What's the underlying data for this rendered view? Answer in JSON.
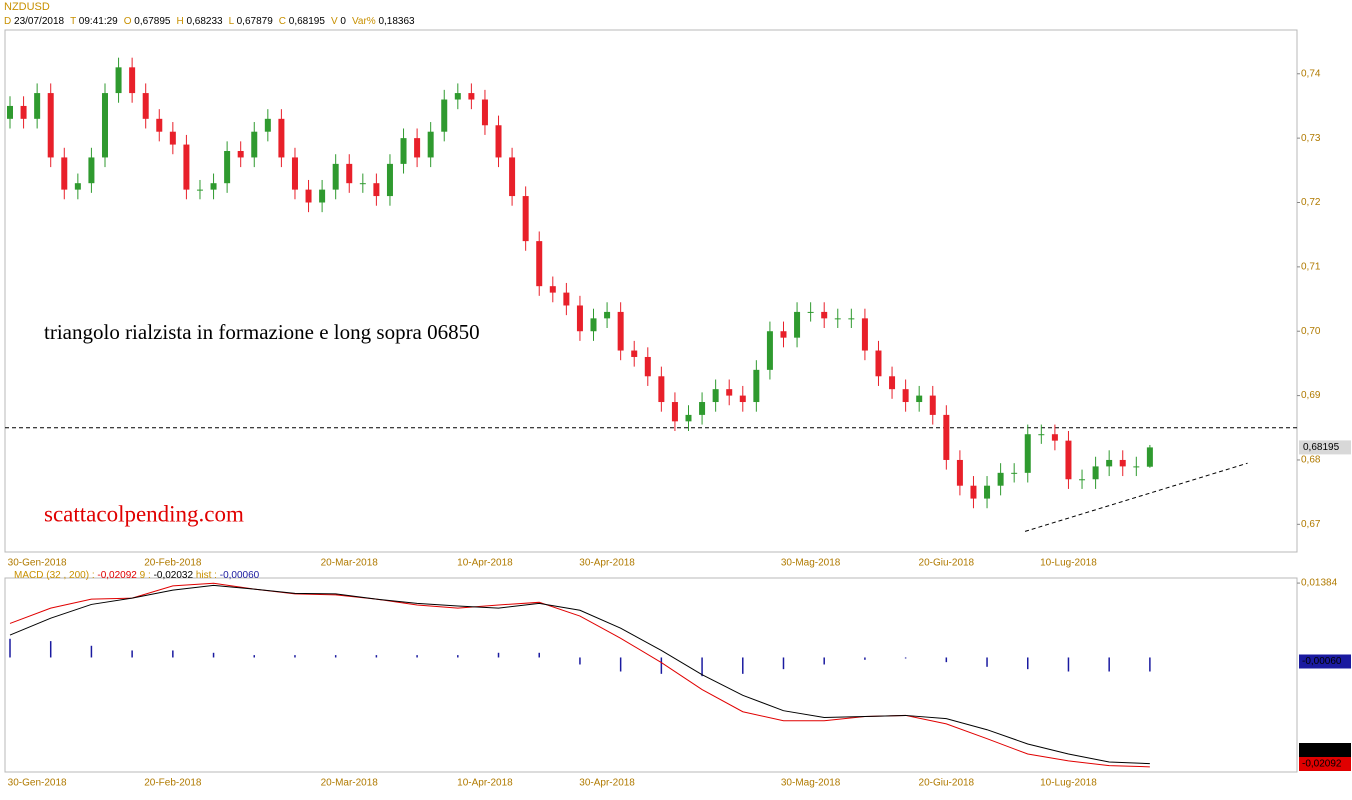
{
  "chart_data": [
    {
      "type": "candlestick",
      "title": "NZDUSD",
      "info": [
        {
          "key": "D",
          "value": "23/07/2018"
        },
        {
          "key": "T",
          "value": "09:41:29"
        },
        {
          "key": "O",
          "value": "0,67895"
        },
        {
          "key": "H",
          "value": "0,68233"
        },
        {
          "key": "L",
          "value": "0,67879"
        },
        {
          "key": "C",
          "value": "0,68195"
        },
        {
          "key": "V",
          "value": "0"
        },
        {
          "key": "Var%",
          "value": "0,18363"
        }
      ],
      "categories": [
        null,
        null,
        "30-Gen-2018",
        null,
        null,
        null,
        null,
        null,
        null,
        null,
        null,
        null,
        "20-Feb-2018",
        null,
        null,
        null,
        null,
        null,
        null,
        null,
        null,
        null,
        null,
        null,
        null,
        "20-Mar-2018",
        null,
        null,
        null,
        null,
        null,
        null,
        null,
        null,
        null,
        "10-Apr-2018",
        null,
        null,
        null,
        null,
        null,
        null,
        null,
        null,
        "30-Apr-2018",
        null,
        null,
        null,
        null,
        null,
        null,
        null,
        null,
        null,
        null,
        null,
        null,
        null,
        null,
        "30-Mag-2018",
        null,
        null,
        null,
        null,
        null,
        null,
        null,
        null,
        null,
        "20-Giu-2018",
        null,
        null,
        null,
        null,
        null,
        null,
        null,
        null,
        "10-Lug-2018",
        null,
        null,
        null,
        null,
        null,
        null
      ],
      "open": [
        0.733,
        0.735,
        0.733,
        0.737,
        0.727,
        0.722,
        0.723,
        0.727,
        0.737,
        0.741,
        0.737,
        0.733,
        0.731,
        0.729,
        0.722,
        0.722,
        0.723,
        0.728,
        0.727,
        0.731,
        0.733,
        0.727,
        0.722,
        0.72,
        0.722,
        0.726,
        0.723,
        0.723,
        0.721,
        0.726,
        0.73,
        0.727,
        0.731,
        0.736,
        0.737,
        0.736,
        0.732,
        0.727,
        0.721,
        0.714,
        0.707,
        0.706,
        0.704,
        0.7,
        0.702,
        0.703,
        0.697,
        0.696,
        0.693,
        0.689,
        0.686,
        0.687,
        0.689,
        0.691,
        0.69,
        0.689,
        0.694,
        0.7,
        0.699,
        0.703,
        0.703,
        0.702,
        0.702,
        0.702,
        0.697,
        0.693,
        0.691,
        0.689,
        0.69,
        0.687,
        0.68,
        0.676,
        0.674,
        0.676,
        0.678,
        0.678,
        0.684,
        0.684,
        0.683,
        0.677,
        0.677,
        0.679,
        0.68,
        0.679,
        0.67895
      ],
      "high": [
        0.7365,
        0.7365,
        0.7385,
        0.7385,
        0.7285,
        0.7245,
        0.7285,
        0.7385,
        0.7425,
        0.7425,
        0.7385,
        0.7345,
        0.7325,
        0.7305,
        0.7235,
        0.7245,
        0.7295,
        0.7295,
        0.7325,
        0.7345,
        0.7345,
        0.7285,
        0.7235,
        0.7235,
        0.7275,
        0.7275,
        0.7245,
        0.7245,
        0.7275,
        0.7315,
        0.7315,
        0.7325,
        0.7375,
        0.7385,
        0.7385,
        0.7375,
        0.7335,
        0.7285,
        0.7225,
        0.7155,
        0.7085,
        0.7075,
        0.7055,
        0.7035,
        0.7045,
        0.7045,
        0.6985,
        0.6975,
        0.6945,
        0.6905,
        0.6885,
        0.6905,
        0.6925,
        0.6925,
        0.6915,
        0.6955,
        0.7015,
        0.7015,
        0.7045,
        0.7045,
        0.7045,
        0.7035,
        0.7035,
        0.7035,
        0.6985,
        0.6945,
        0.6925,
        0.6915,
        0.6915,
        0.6885,
        0.6815,
        0.6775,
        0.6775,
        0.6795,
        0.6795,
        0.6855,
        0.6855,
        0.6855,
        0.6845,
        0.6785,
        0.6805,
        0.6815,
        0.6815,
        0.6805,
        0.68233
      ],
      "low": [
        0.7315,
        0.7315,
        0.7315,
        0.7255,
        0.7205,
        0.7205,
        0.7215,
        0.7255,
        0.7355,
        0.7355,
        0.7315,
        0.7295,
        0.7275,
        0.7205,
        0.7205,
        0.7205,
        0.7215,
        0.7255,
        0.7255,
        0.7295,
        0.7255,
        0.7205,
        0.7185,
        0.7185,
        0.7205,
        0.7215,
        0.7215,
        0.7195,
        0.7195,
        0.7245,
        0.7255,
        0.7255,
        0.7295,
        0.7345,
        0.7345,
        0.7305,
        0.7255,
        0.7195,
        0.7125,
        0.7055,
        0.7045,
        0.7025,
        0.6985,
        0.6985,
        0.7005,
        0.6955,
        0.6945,
        0.6915,
        0.6875,
        0.6845,
        0.6845,
        0.6855,
        0.6875,
        0.6885,
        0.6875,
        0.6875,
        0.6925,
        0.6975,
        0.6975,
        0.7015,
        0.7005,
        0.7005,
        0.7005,
        0.6955,
        0.6915,
        0.6895,
        0.6875,
        0.6875,
        0.6855,
        0.6785,
        0.6745,
        0.6725,
        0.6725,
        0.6745,
        0.6765,
        0.6765,
        0.6825,
        0.6815,
        0.6755,
        0.6755,
        0.6755,
        0.6775,
        0.6775,
        0.6775,
        0.67879
      ],
      "close": [
        0.735,
        0.733,
        0.737,
        0.727,
        0.722,
        0.723,
        0.727,
        0.737,
        0.741,
        0.737,
        0.733,
        0.731,
        0.729,
        0.722,
        0.722,
        0.723,
        0.728,
        0.727,
        0.731,
        0.733,
        0.727,
        0.722,
        0.72,
        0.722,
        0.726,
        0.723,
        0.723,
        0.721,
        0.726,
        0.73,
        0.727,
        0.731,
        0.736,
        0.737,
        0.736,
        0.732,
        0.727,
        0.721,
        0.714,
        0.707,
        0.706,
        0.704,
        0.7,
        0.702,
        0.703,
        0.697,
        0.696,
        0.693,
        0.689,
        0.686,
        0.687,
        0.689,
        0.691,
        0.69,
        0.689,
        0.694,
        0.7,
        0.699,
        0.703,
        0.703,
        0.702,
        0.702,
        0.702,
        0.697,
        0.693,
        0.691,
        0.689,
        0.69,
        0.687,
        0.68,
        0.676,
        0.674,
        0.676,
        0.678,
        0.678,
        0.684,
        0.684,
        0.683,
        0.677,
        0.677,
        0.679,
        0.68,
        0.679,
        0.679,
        0.68195
      ],
      "up_color": "#2f9a2f",
      "down_color": "#e8202a",
      "ylim": [
        0.6657,
        0.7468
      ],
      "yticks": [
        {
          "value": 0.67,
          "label": "0,67"
        },
        {
          "value": 0.68,
          "label": "0,68"
        },
        {
          "value": 0.69,
          "label": "0,69"
        },
        {
          "value": 0.7,
          "label": "0,70"
        },
        {
          "value": 0.71,
          "label": "0,71"
        },
        {
          "value": 0.72,
          "label": "0,72"
        },
        {
          "value": 0.73,
          "label": "0,73"
        },
        {
          "value": 0.74,
          "label": "0,74"
        }
      ],
      "last_label": "0,68195",
      "annotations": [
        "triangolo rialzista in formazione e long sopra 06850",
        "scattacolpending.com"
      ],
      "hline": 0.685,
      "trendline": {
        "x": [
          74.8,
          91.2
        ],
        "y": [
          0.6689,
          0.6795
        ]
      }
    },
    {
      "type": "macd",
      "params": "(32 , 200)",
      "separator": ":",
      "x": [
        0,
        3,
        6,
        9,
        12,
        15,
        18,
        21,
        24,
        27,
        30,
        33,
        36,
        39,
        42,
        45,
        48,
        51,
        54,
        57,
        60,
        63,
        66,
        69,
        72,
        75,
        78,
        81,
        84
      ],
      "series": [
        {
          "name": "MACD",
          "color": "#e00000",
          "last_label": "-0,02092",
          "values": [
            0.0062,
            0.0091,
            0.0108,
            0.011,
            0.0133,
            0.0138,
            0.0127,
            0.0118,
            0.0116,
            0.0108,
            0.0097,
            0.0091,
            0.0097,
            0.0102,
            0.0076,
            0.0034,
            -0.0012,
            -0.0063,
            -0.0105,
            -0.0122,
            -0.0122,
            -0.0114,
            -0.0112,
            -0.0128,
            -0.0156,
            -0.0185,
            -0.0198,
            -0.0207,
            -0.02092
          ]
        },
        {
          "name": "9",
          "color": "#000000",
          "last_label": "-0,02032",
          "values": [
            0.004,
            0.0072,
            0.0098,
            0.011,
            0.0125,
            0.0134,
            0.0127,
            0.0119,
            0.0118,
            0.0108,
            0.01,
            0.0095,
            0.0091,
            0.01,
            0.0087,
            0.0053,
            0.0011,
            -0.0035,
            -0.0074,
            -0.0103,
            -0.0116,
            -0.0114,
            -0.0112,
            -0.0118,
            -0.0139,
            -0.0166,
            -0.0185,
            -0.02,
            -0.02032
          ]
        },
        {
          "name": "hist",
          "color": "#1a1aa0",
          "last_label": "-0,00060",
          "axis": "y2",
          "values": [
            0.0008,
            0.0007,
            0.0005,
            0.0003,
            0.0003,
            0.0002,
            0.0001,
            0.0001,
            0.0001,
            0.0001,
            0.0001,
            0.0001,
            0.0002,
            0.0002,
            -0.0003,
            -0.0006,
            -0.0007,
            -0.0008,
            -0.0007,
            -0.0005,
            -0.0003,
            -0.0001,
            0,
            -0.0002,
            -0.0004,
            -0.0005,
            -0.0006,
            -0.0006,
            -0.0006
          ]
        }
      ],
      "ylim": [
        -0.0219,
        0.0148
      ],
      "yticks": [
        {
          "value": 0.01384,
          "label": "0,01384"
        }
      ],
      "y2lim": [
        -0.0049,
        0.0034
      ]
    }
  ]
}
